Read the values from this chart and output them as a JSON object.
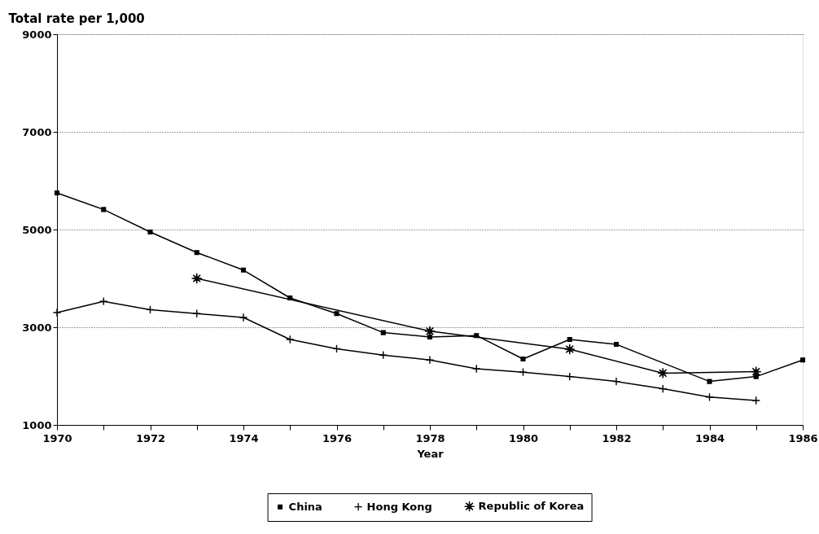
{
  "chart_data": {
    "type": "line",
    "xlabel": "Year",
    "ylabel": "Total rate per 1,000",
    "xlim": [
      1970,
      1986
    ],
    "xticks": [
      1970,
      {
        "value": 1971,
        "label": null
      },
      1972,
      {
        "value": 1973,
        "label": null
      },
      1974,
      {
        "value": 1975,
        "label": null
      },
      1976,
      {
        "value": 1977,
        "label": null
      },
      1978,
      {
        "value": 1979,
        "label": null
      },
      1980,
      {
        "value": 1981,
        "label": null
      },
      1982,
      {
        "value": 1983,
        "label": null
      },
      1984,
      {
        "value": 1985,
        "label": null
      },
      1986
    ],
    "ylim": [
      1000,
      9000
    ],
    "yticks": [
      1000,
      3000,
      5000,
      7000,
      9000
    ],
    "grid": "y",
    "legend": "bottom",
    "line_style": "solid",
    "series": [
      {
        "name": "China",
        "color": "#000000",
        "marker": "square",
        "x": [
          1970,
          1971,
          1972,
          1973,
          1974,
          1975,
          1976,
          1977,
          1978,
          1979,
          1980,
          1981,
          1982,
          1984,
          1985,
          1986
        ],
        "values": [
          5750,
          5410,
          4950,
          4530,
          4170,
          3600,
          3280,
          2890,
          2800,
          2830,
          2350,
          2750,
          2650,
          1890,
          1990,
          2330
        ]
      },
      {
        "name": "Hong Kong",
        "color": "#000000",
        "marker": "cross",
        "x": [
          1970,
          1971,
          1972,
          1973,
          1974,
          1975,
          1976,
          1977,
          1978,
          1979,
          1980,
          1981,
          1982,
          1983,
          1984,
          1985
        ],
        "values": [
          3300,
          3530,
          3360,
          3280,
          3200,
          2750,
          2560,
          2430,
          2330,
          2150,
          2080,
          1990,
          1890,
          1740,
          1570,
          1500
        ]
      },
      {
        "name": "Republic of Korea",
        "color": "#000000",
        "marker": "star",
        "x": [
          1973,
          1978,
          1981,
          1983,
          1985
        ],
        "values": [
          4000,
          2920,
          2550,
          2060,
          2090
        ]
      }
    ]
  }
}
